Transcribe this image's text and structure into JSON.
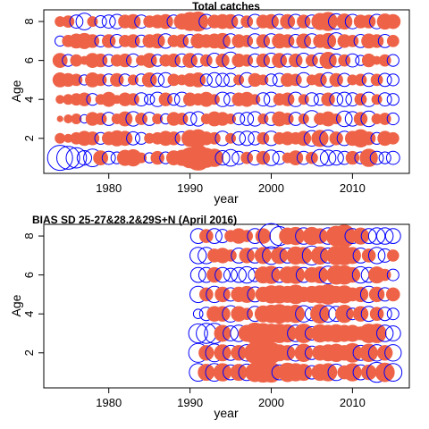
{
  "colors": {
    "positive": "#ee6347",
    "negative": "#0000ff",
    "axis": "#000000",
    "background": "#ffffff"
  },
  "chart_data": [
    {
      "type": "scatter",
      "subtype": "bubble residual plot",
      "title": "Total catches",
      "xlabel": "year",
      "ylabel": "Age",
      "xlim": [
        1972,
        2017
      ],
      "ylim": [
        0.2,
        8.6
      ],
      "xticks": [
        1980,
        1990,
        2000,
        2010
      ],
      "yticks": [
        2,
        4,
        6,
        8
      ],
      "x": [
        1974,
        1975,
        1976,
        1977,
        1978,
        1979,
        1980,
        1981,
        1982,
        1983,
        1984,
        1985,
        1986,
        1987,
        1988,
        1989,
        1990,
        1991,
        1992,
        1993,
        1994,
        1995,
        1996,
        1997,
        1998,
        1999,
        2000,
        2001,
        2002,
        2003,
        2004,
        2005,
        2006,
        2007,
        2008,
        2009,
        2010,
        2011,
        2012,
        2013,
        2014,
        2015
      ],
      "ages": [
        1,
        2,
        3,
        4,
        5,
        6,
        7,
        8
      ],
      "residuals": [
        [
          -1.8,
          -1.5,
          -1.2,
          -0.6,
          -0.9,
          0.6,
          -0.5,
          -0.4,
          0.7,
          0.8,
          0.3,
          -0.3,
          0.5,
          -0.4,
          0.6,
          0.7,
          1.2,
          1.8,
          1.1,
          0.9,
          -0.6,
          -0.8,
          -0.5,
          0.4,
          -0.6,
          0.5,
          -0.7,
          -0.5,
          0.3,
          0.6,
          -0.5,
          0.4,
          -0.8,
          -0.7,
          -0.6,
          -0.5,
          0.5,
          -0.4,
          0.9,
          -0.5,
          -0.4,
          -0.5
        ],
        [
          0.3,
          0.2,
          0.4,
          0.6,
          0.5,
          -0.4,
          0.5,
          0.7,
          0.6,
          -0.5,
          -0.4,
          0.3,
          0.4,
          0.6,
          0.5,
          -0.5,
          0.8,
          0.9,
          0.5,
          0.4,
          -0.6,
          0.3,
          -0.5,
          -0.6,
          -0.5,
          0.4,
          -0.6,
          0.4,
          0.5,
          0.4,
          0.6,
          -0.7,
          0.8,
          -0.8,
          0.5,
          -0.6,
          0.6,
          0.9,
          0.5,
          -0.4,
          0.6,
          0.4
        ],
        [
          0.1,
          0.2,
          0.3,
          -0.2,
          0.5,
          0.4,
          -0.5,
          0.3,
          0.6,
          -0.6,
          0.4,
          -0.5,
          0.3,
          -0.3,
          0.5,
          0.4,
          -0.5,
          -0.6,
          0.3,
          0.6,
          0.5,
          0.3,
          -0.4,
          -0.5,
          -0.6,
          0.3,
          -0.5,
          0.6,
          0.4,
          -0.5,
          0.3,
          -0.8,
          0.4,
          0.6,
          0.3,
          -0.7,
          -0.6,
          0.5,
          -0.7,
          0.3,
          0.4,
          -0.4
        ],
        [
          0.2,
          0.3,
          0.4,
          0.5,
          -0.4,
          0.3,
          0.6,
          0.2,
          0.5,
          0.4,
          -0.5,
          -0.3,
          -0.6,
          0.5,
          -0.4,
          -0.6,
          0.5,
          0.4,
          0.6,
          0.3,
          -0.6,
          -0.5,
          0.5,
          0.6,
          0.3,
          -0.5,
          -0.6,
          0.4,
          0.5,
          -0.6,
          0.3,
          -0.5,
          -0.4,
          0.5,
          -0.5,
          -0.6,
          -0.5,
          0.4,
          -0.6,
          0.3,
          -0.5,
          -0.4
        ],
        [
          0.6,
          0.5,
          0.4,
          -0.3,
          0.6,
          0.4,
          -0.4,
          0.5,
          -0.4,
          0.3,
          -0.4,
          0.6,
          -0.5,
          -0.6,
          0.4,
          0.3,
          0.5,
          0.6,
          -0.4,
          -0.6,
          -0.5,
          -0.5,
          0.3,
          -0.6,
          0.5,
          0.3,
          -0.4,
          -0.5,
          0.5,
          0.4,
          -0.6,
          0.3,
          0.5,
          -0.6,
          0.5,
          -0.5,
          0.3,
          0.4,
          -0.5,
          0.4,
          -0.5,
          -0.4
        ],
        [
          0.6,
          -0.4,
          0.4,
          0.2,
          0.6,
          0.5,
          -0.4,
          0.4,
          0.5,
          -0.5,
          0.3,
          0.6,
          -0.4,
          0.4,
          0.5,
          -0.5,
          0.6,
          -0.5,
          0.4,
          -0.6,
          0.5,
          -0.8,
          0.5,
          0.4,
          -0.5,
          0.5,
          -0.6,
          0.6,
          -0.5,
          0.5,
          -0.6,
          0.4,
          -0.6,
          0.8,
          -0.5,
          0.4,
          -0.5,
          -0.3,
          0.5,
          0.2,
          0.4,
          -0.4
        ],
        [
          -0.3,
          0.4,
          0.6,
          0.7,
          0.5,
          -0.4,
          0.5,
          -0.5,
          0.4,
          0.5,
          -0.4,
          0.5,
          0.6,
          -0.6,
          0.4,
          0.5,
          -0.5,
          0.6,
          0.5,
          0.6,
          0.7,
          -0.6,
          0.5,
          0.4,
          -0.6,
          0.5,
          -0.6,
          0.6,
          0.5,
          -0.5,
          0.6,
          -0.6,
          0.5,
          0.7,
          -0.8,
          0.5,
          0.4,
          -0.5,
          0.6,
          0.5,
          -0.5,
          0.4
        ],
        [
          0.3,
          0.4,
          -0.5,
          -0.8,
          0.3,
          -0.4,
          -0.5,
          -0.6,
          0.5,
          0.6,
          -0.5,
          0.4,
          0.5,
          0.6,
          -0.5,
          0.7,
          1.0,
          1.1,
          -0.6,
          0.5,
          0.6,
          0.6,
          -0.5,
          0.4,
          -0.6,
          0.5,
          0.6,
          -0.6,
          0.6,
          -0.6,
          0.5,
          -0.5,
          0.8,
          1.0,
          -0.7,
          0.7,
          -0.6,
          0.5,
          0.5,
          -0.6,
          0.7,
          0.6
        ]
      ]
    },
    {
      "type": "scatter",
      "subtype": "bubble residual plot",
      "title": "BIAS SD 25-27&28.2&29S+N (April 2016)",
      "xlabel": "year",
      "ylabel": "Age",
      "xlim": [
        1972,
        2017
      ],
      "ylim": [
        0.2,
        8.6
      ],
      "xticks": [
        1980,
        1990,
        2000,
        2010
      ],
      "yticks": [
        2,
        4,
        6,
        8
      ],
      "x": [
        1991,
        1992,
        1993,
        1994,
        1995,
        1996,
        1997,
        1998,
        1999,
        2000,
        2001,
        2002,
        2003,
        2004,
        2005,
        2006,
        2007,
        2008,
        2009,
        2010,
        2011,
        2012,
        2013,
        2014,
        2015
      ],
      "ages": [
        1,
        2,
        3,
        4,
        5,
        6,
        7,
        8
      ],
      "residuals": [
        [
          -0.7,
          0.6,
          -0.7,
          0.7,
          -0.5,
          0.6,
          -0.6,
          0.8,
          0.9,
          0.9,
          -0.5,
          0.8,
          0.7,
          0.6,
          -0.4,
          0.6,
          0.7,
          -0.6,
          0.4,
          0.7,
          -0.5,
          0.5,
          -0.9,
          0.8,
          -0.7
        ],
        [
          -0.8,
          0.5,
          -0.7,
          0.6,
          -0.5,
          0.5,
          -0.6,
          1.0,
          1.2,
          1.0,
          0.6,
          0.5,
          -0.6,
          0.7,
          -0.4,
          0.5,
          0.6,
          0.7,
          0.5,
          0.8,
          -0.5,
          0.7,
          -0.6,
          0.5,
          -0.6
        ],
        [
          -0.8,
          -0.9,
          -0.9,
          0.6,
          -0.5,
          -0.6,
          0.6,
          1.0,
          0.9,
          0.8,
          0.8,
          0.7,
          -0.6,
          0.8,
          -0.4,
          0.7,
          0.6,
          0.7,
          0.6,
          0.6,
          0.4,
          0.8,
          0.8,
          -0.6,
          -0.5
        ],
        [
          -0.2,
          -0.4,
          0.5,
          0.5,
          -0.6,
          0.5,
          0.3,
          -0.5,
          0.6,
          0.7,
          0.8,
          0.6,
          0.7,
          -0.6,
          -0.4,
          0.8,
          -0.6,
          -0.5,
          0.7,
          -0.3,
          0.5,
          -0.5,
          0.4,
          -0.4,
          -0.3
        ],
        [
          -0.6,
          0.4,
          -0.6,
          0.5,
          -0.4,
          0.5,
          0.6,
          -0.5,
          0.5,
          0.7,
          0.7,
          0.6,
          0.8,
          0.5,
          0.6,
          0.7,
          0.9,
          0.6,
          0.7,
          0.4,
          0.5,
          -0.6,
          0.5,
          -0.4,
          0.4
        ],
        [
          -0.5,
          -0.5,
          0.5,
          -0.5,
          -0.4,
          -0.5,
          -0.6,
          -0.4,
          0.6,
          0.7,
          -0.5,
          0.6,
          0.7,
          -0.5,
          0.5,
          0.6,
          -0.7,
          0.8,
          0.8,
          0.5,
          -0.6,
          -0.5,
          0.6,
          0.3,
          -0.3
        ],
        [
          -0.6,
          -0.6,
          0.4,
          0.5,
          0.3,
          -0.5,
          0.5,
          -0.5,
          0.6,
          -0.7,
          0.6,
          -0.5,
          0.7,
          0.6,
          -0.8,
          0.7,
          -0.5,
          0.8,
          0.8,
          0.6,
          -0.5,
          0.4,
          -0.6,
          -0.4,
          0.3
        ],
        [
          -0.5,
          0.4,
          -0.5,
          -0.4,
          0.3,
          0.5,
          0.3,
          -0.5,
          0.5,
          -1.4,
          -0.8,
          0.6,
          0.7,
          -0.6,
          0.7,
          0.5,
          -0.6,
          0.9,
          1.1,
          -0.5,
          0.6,
          -0.5,
          -0.6,
          -0.6,
          -0.5
        ]
      ]
    }
  ]
}
